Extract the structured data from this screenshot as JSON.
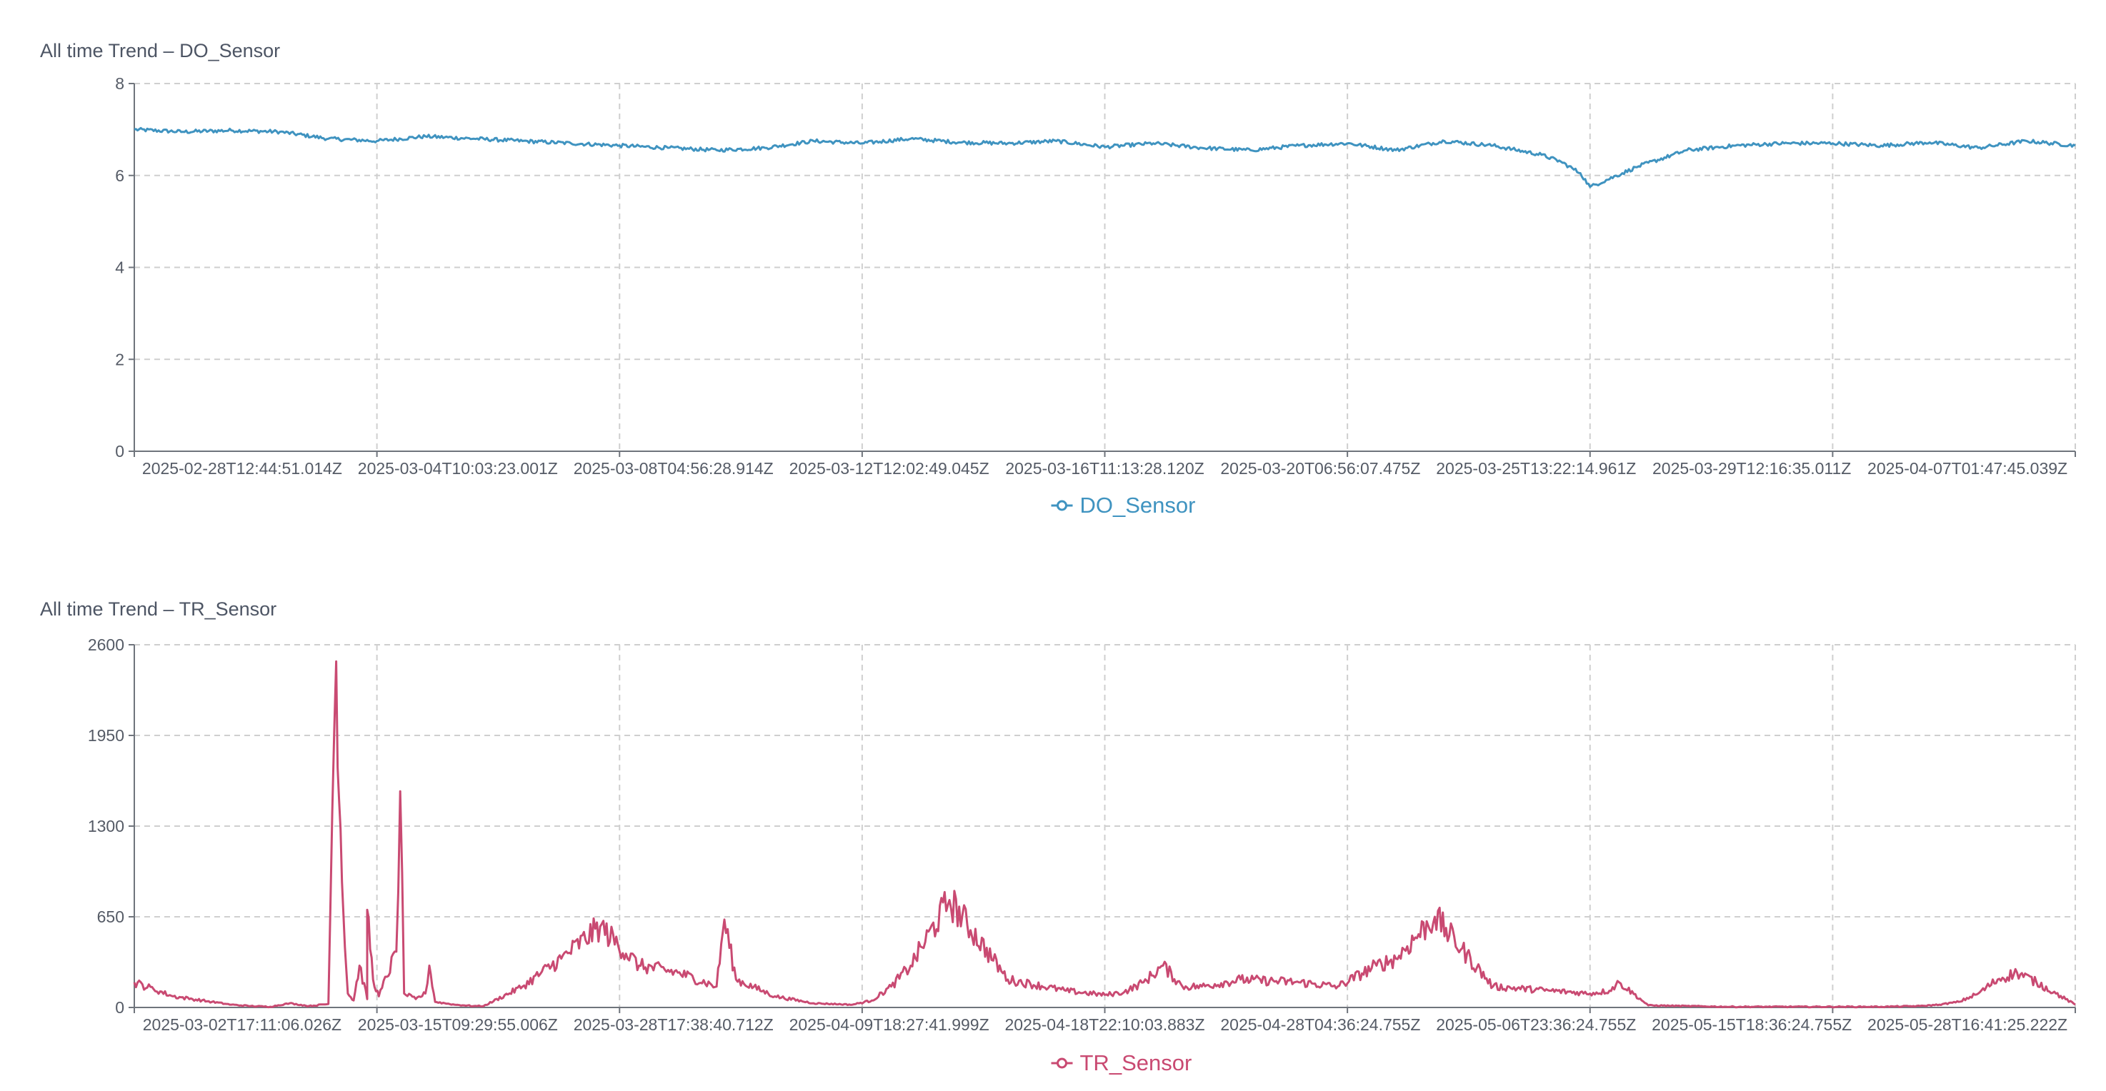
{
  "charts": [
    {
      "title": "All time Trend – DO_Sensor",
      "color": "#3f93c0",
      "y_ticks": [
        "0",
        "2",
        "4",
        "6",
        "8"
      ],
      "x_ticks": [
        "2025-02-28T12:44:51.014Z",
        "2025-03-04T10:03:23.001Z",
        "2025-03-08T04:56:28.914Z",
        "2025-03-12T12:02:49.045Z",
        "2025-03-16T11:13:28.120Z",
        "2025-03-20T06:56:07.475Z",
        "2025-03-25T13:22:14.961Z",
        "2025-03-29T12:16:35.011Z",
        "2025-04-07T01:47:45.039Z"
      ],
      "legend": "DO_Sensor"
    },
    {
      "title": "All time Trend – TR_Sensor",
      "color": "#c94a72",
      "y_ticks": [
        "0",
        "650",
        "1300",
        "1950",
        "2600"
      ],
      "x_ticks": [
        "2025-03-02T17:11:06.026Z",
        "2025-03-15T09:29:55.006Z",
        "2025-03-28T17:38:40.712Z",
        "2025-04-09T18:27:41.999Z",
        "2025-04-18T22:10:03.883Z",
        "2025-04-28T04:36:24.755Z",
        "2025-05-06T23:36:24.755Z",
        "2025-05-15T18:36:24.755Z",
        "2025-05-28T16:41:25.222Z"
      ],
      "legend": "TR_Sensor"
    }
  ],
  "chart_data": [
    {
      "type": "line",
      "title": "All time Trend – DO_Sensor",
      "xlabel": "",
      "ylabel": "",
      "ylim": [
        0,
        8
      ],
      "y_ticks": [
        0,
        2,
        4,
        6,
        8
      ],
      "x_tick_labels": [
        "2025-02-28T12:44:51.014Z",
        "2025-03-04T10:03:23.001Z",
        "2025-03-08T04:56:28.914Z",
        "2025-03-12T12:02:49.045Z",
        "2025-03-16T11:13:28.120Z",
        "2025-03-20T06:56:07.475Z",
        "2025-03-25T13:22:14.961Z",
        "2025-03-29T12:16:35.011Z",
        "2025-04-07T01:47:45.039Z"
      ],
      "grid": true,
      "legend_position": "bottom-center",
      "series": [
        {
          "name": "DO_Sensor",
          "color": "#3f93c0",
          "x": [
            0,
            2.5,
            5,
            7.5,
            10,
            12.5,
            15,
            17.5,
            20,
            22.5,
            25,
            27.5,
            30,
            32.5,
            35,
            37.5,
            40,
            42.5,
            45,
            47.5,
            50,
            52.5,
            55,
            57.5,
            60,
            62.5,
            65,
            67.5,
            70,
            72.5,
            73.5,
            74.5,
            75,
            77.5,
            80,
            82.5,
            85,
            87.5,
            90,
            92.5,
            95,
            97.5,
            100
          ],
          "values": [
            7.0,
            6.95,
            6.98,
            6.95,
            6.8,
            6.75,
            6.85,
            6.8,
            6.75,
            6.7,
            6.65,
            6.6,
            6.55,
            6.6,
            6.75,
            6.7,
            6.8,
            6.72,
            6.7,
            6.75,
            6.62,
            6.7,
            6.6,
            6.55,
            6.65,
            6.7,
            6.55,
            6.75,
            6.65,
            6.45,
            6.3,
            6.05,
            5.75,
            6.2,
            6.55,
            6.65,
            6.7,
            6.7,
            6.65,
            6.72,
            6.6,
            6.75,
            6.65
          ]
        }
      ]
    },
    {
      "type": "line",
      "title": "All time Trend – TR_Sensor",
      "xlabel": "",
      "ylabel": "",
      "ylim": [
        0,
        2600
      ],
      "y_ticks": [
        0,
        650,
        1300,
        1950,
        2600
      ],
      "x_tick_labels": [
        "2025-03-02T17:11:06.026Z",
        "2025-03-15T09:29:55.006Z",
        "2025-03-28T17:38:40.712Z",
        "2025-04-09T18:27:41.999Z",
        "2025-04-18T22:10:03.883Z",
        "2025-04-28T04:36:24.755Z",
        "2025-05-06T23:36:24.755Z",
        "2025-05-15T18:36:24.755Z",
        "2025-05-28T16:41:25.222Z"
      ],
      "grid": true,
      "legend_position": "bottom-center",
      "series": [
        {
          "name": "TR_Sensor",
          "color": "#c94a72",
          "x": [
            0,
            1,
            2,
            3,
            4,
            5,
            6,
            7,
            8,
            9,
            10,
            10.2,
            10.4,
            10.7,
            11,
            11.3,
            11.6,
            12,
            12,
            12.3,
            12.6,
            13.5,
            13.7,
            13.9,
            14.5,
            15,
            15.2,
            15.5,
            16,
            16.5,
            17,
            17.5,
            18,
            20,
            22,
            24,
            26,
            28,
            30,
            30.4,
            31,
            33,
            35,
            37,
            38,
            39,
            40,
            42,
            45,
            48,
            50,
            51,
            52,
            53,
            54,
            55,
            57,
            60,
            62,
            64,
            65,
            67,
            70,
            73,
            75,
            76,
            76.5,
            78,
            80,
            82,
            84,
            86,
            88,
            90,
            92,
            93,
            94,
            95,
            96,
            97,
            98,
            99,
            100
          ],
          "values": [
            180,
            130,
            80,
            60,
            40,
            20,
            10,
            5,
            30,
            10,
            25,
            1400,
            2480,
            900,
            100,
            50,
            300,
            60,
            700,
            200,
            80,
            400,
            1550,
            100,
            60,
            100,
            300,
            40,
            30,
            20,
            15,
            10,
            10,
            150,
            350,
            580,
            300,
            250,
            150,
            630,
            200,
            80,
            30,
            20,
            50,
            150,
            300,
            770,
            200,
            120,
            90,
            110,
            180,
            300,
            150,
            150,
            200,
            180,
            150,
            300,
            350,
            650,
            150,
            120,
            100,
            120,
            180,
            15,
            10,
            5,
            5,
            5,
            5,
            5,
            10,
            20,
            40,
            100,
            200,
            250,
            180,
            100,
            20
          ]
        }
      ]
    }
  ]
}
